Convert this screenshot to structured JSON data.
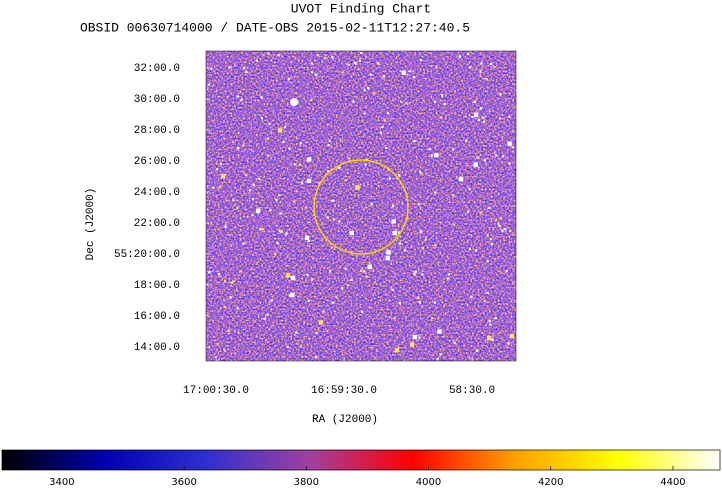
{
  "chart_data": {
    "type": "image",
    "title": "UVOT Finding Chart",
    "subtitle": "OBSID 00630714000 / DATE-OBS 2015-02-11T12:27:40.5",
    "xlabel": "RA (J2000)",
    "ylabel": "Dec (J2000)",
    "xlim": [
      34.7,
      -110.6
    ],
    "xticks": [
      {
        "value": 30,
        "label": "17:00:30.0"
      },
      {
        "value": -30,
        "label": "16:59:30.0"
      },
      {
        "value": -90,
        "label": "58:30.0"
      }
    ],
    "ylim": [
      13.1,
      33.1
    ],
    "yticks": [
      {
        "value": 32,
        "label": "32:00.0"
      },
      {
        "value": 30,
        "label": "30:00.0"
      },
      {
        "value": 28,
        "label": "28:00.0"
      },
      {
        "value": 26,
        "label": "26:00.0"
      },
      {
        "value": 24,
        "label": "24:00.0"
      },
      {
        "value": 22,
        "label": "22:00.0"
      },
      {
        "value": 20,
        "label": "55:20:00.0"
      },
      {
        "value": 18,
        "label": "18:00.0"
      },
      {
        "value": 16,
        "label": "16:00.0"
      },
      {
        "value": 14,
        "label": "14:00.0"
      }
    ],
    "colorbar": {
      "lim": [
        3302,
        4477
      ],
      "ticks": [
        3400,
        3600,
        3800,
        4000,
        4200,
        4400
      ],
      "colormap": [
        "#000000",
        "#0000b0",
        "#3030d0",
        "#a040a0",
        "#ff0000",
        "#ffa000",
        "#ffff00",
        "#ffffff"
      ]
    }
  }
}
